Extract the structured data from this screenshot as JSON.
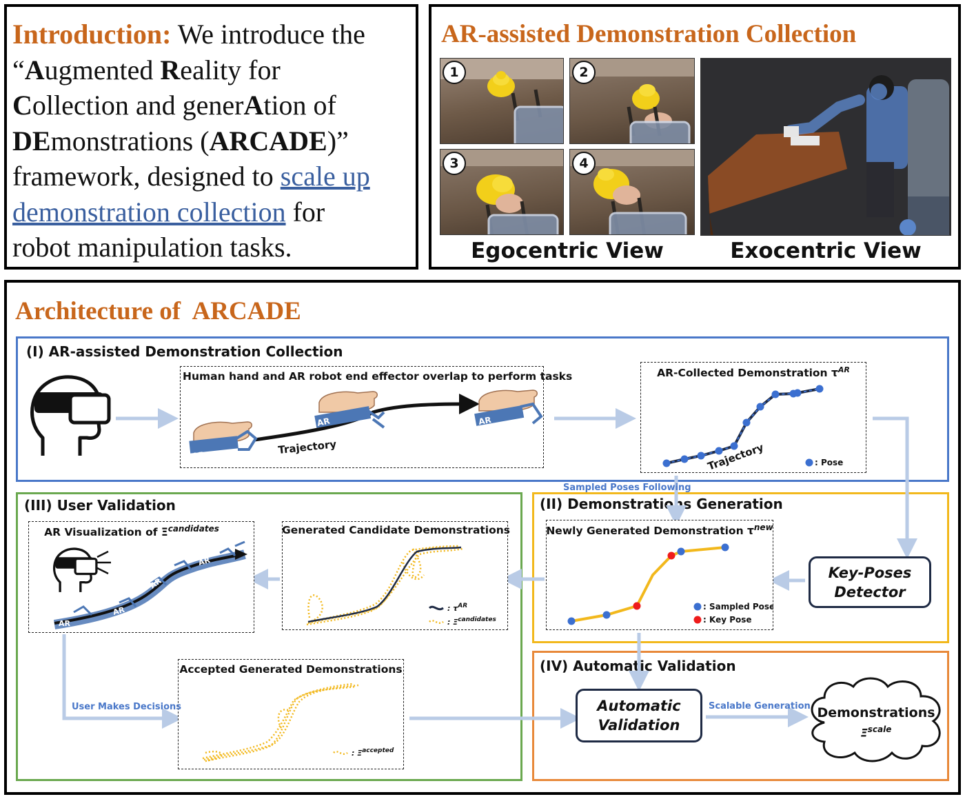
{
  "intro": {
    "heading": "Introduction:",
    "t1": " We introduce the",
    "t2": "“",
    "A": "A",
    "t3": "ugmented ",
    "R": "R",
    "t4": "eality for",
    "C": "C",
    "t5": "ollection and gener",
    "A2": "A",
    "t6": "tion of",
    "DE": "DE",
    "t7": "monstrations (",
    "ARCADE": "ARCADE",
    "t8": ")”",
    "t9": "framework, designed to ",
    "link1": "scale up",
    "link2": "demonstration collection",
    "t10": " for",
    "t11": "robot manipulation tasks."
  },
  "collection": {
    "title": "AR-assisted Demonstration Collection",
    "steps": [
      "1",
      "2",
      "3",
      "4"
    ],
    "ego_label": "Egocentric View",
    "exo_label": "Exocentric View"
  },
  "architecture": {
    "title": "Architecture of  ARCADE",
    "stage1": {
      "title": "(I) AR-assisted Demonstration Collection",
      "overlap_title": "Human hand and AR robot end effector overlap to perform tasks",
      "trajectory": "Trajectory",
      "ar_tag": "AR",
      "collected_title": "AR-Collected Demonstration τ",
      "collected_sup": "AR",
      "pose_legend": ": Pose"
    },
    "flow_sampled": "Sampled Poses Following",
    "stage2": {
      "title": "(II) Demonstrations Generation",
      "newly_title": "Newly Generated Demonstration τ",
      "newly_sup": "new",
      "sampled_pose": ": Sampled Pose",
      "key_pose": ": Key Pose",
      "detector": "Key-Poses Detector"
    },
    "stage3": {
      "title": "(III) User Validation",
      "arvis_title": "AR Visualization of Ξ",
      "arvis_sup": "candidates",
      "candidates_title": "Generated Candidate Demonstrations",
      "legend_tau": ": τ",
      "legend_tau_sup": "AR",
      "legend_xi": ": Ξ",
      "legend_xi_sup": "candidates",
      "accepted_title": "Accepted Generated Demonstrations",
      "accepted_legend": ": Ξ",
      "accepted_sup": "accepted",
      "user_decisions": "User Makes Decisions"
    },
    "stage4": {
      "title": "(IV) Automatic Validation",
      "auto_validation": "Automatic Validation",
      "scalable": "Scalable Generation",
      "demos": "Demonstrations",
      "demos_xi": "Ξ",
      "demos_sup": "scale"
    }
  },
  "colors": {
    "orange_title": "#c8661b",
    "stage1_border": "#4a78c9",
    "stage2_border": "#f2b81c",
    "stage3_border": "#6aa84f",
    "stage4_border": "#e8893a",
    "arrow": "#b9cbe6",
    "pose_blue": "#3b6fd0",
    "key_red": "#ee1b1b",
    "traj_yellow": "#f2b81c"
  }
}
